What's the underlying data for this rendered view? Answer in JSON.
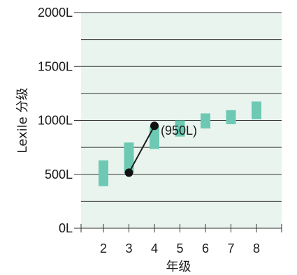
{
  "chart_data": {
    "type": "bar",
    "title": "",
    "xlabel": "年级",
    "ylabel": "Lexile 分级",
    "categories": [
      "2",
      "3",
      "4",
      "5",
      "6",
      "7",
      "8"
    ],
    "ranges": [
      {
        "grade": "2",
        "low": 390,
        "high": 630
      },
      {
        "grade": "3",
        "low": 515,
        "high": 795
      },
      {
        "grade": "4",
        "low": 735,
        "high": 945
      },
      {
        "grade": "5",
        "low": 850,
        "high": 1000
      },
      {
        "grade": "6",
        "low": 925,
        "high": 1065
      },
      {
        "grade": "7",
        "low": 965,
        "high": 1095
      },
      {
        "grade": "8",
        "low": 1010,
        "high": 1175
      }
    ],
    "growth_line": {
      "points": [
        {
          "grade": "3",
          "value": 515
        },
        {
          "grade": "4",
          "value": 950
        }
      ],
      "annotation": "(950L)"
    },
    "y_ticks": [
      "0L",
      "500L",
      "1000L",
      "1500L",
      "2000L"
    ],
    "ylim": [
      0,
      2000
    ],
    "grid": true,
    "colors": {
      "plot_bg": "#eaf4ee",
      "bar": "#6dc9b3",
      "grid": "#333333",
      "line": "#1a1a1a",
      "dot": "#111111"
    }
  }
}
